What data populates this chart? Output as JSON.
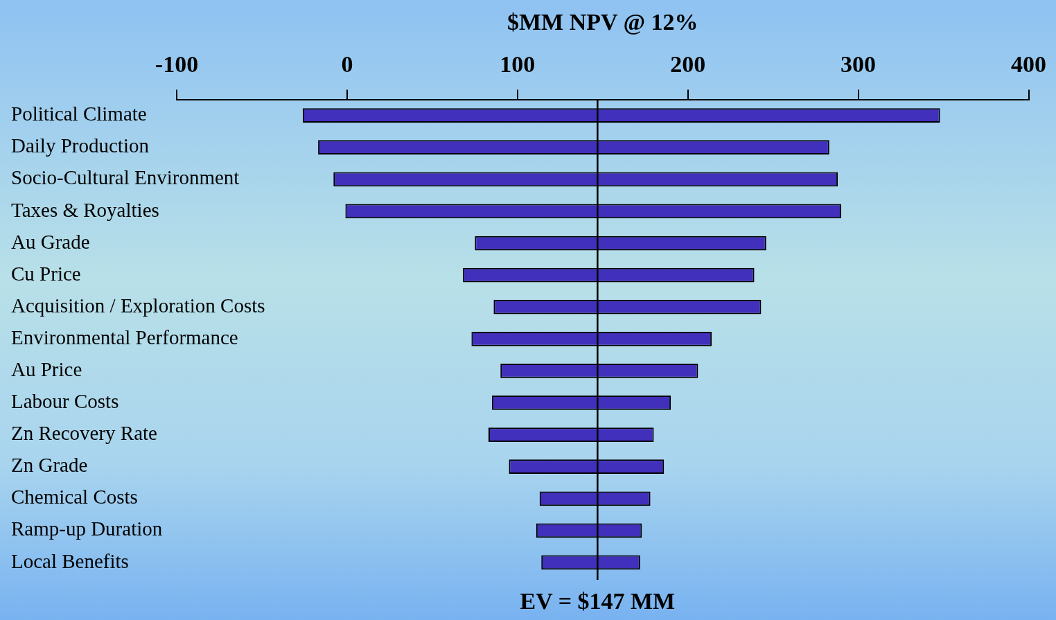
{
  "chart_data": {
    "type": "bar",
    "orientation": "horizontal",
    "xlabel": "$MM NPV @ 12%",
    "categories": [
      "Political Climate",
      "Daily Production",
      "Socio-Cultural Environment",
      "Taxes & Royalties",
      "Au Grade",
      "Cu Price",
      "Acquisition / Exploration Costs",
      "Environmental Performance",
      "Au Price",
      "Labour Costs",
      "Zn Recovery Rate",
      "Zn Grade",
      "Chemical Costs",
      "Ramp-up Duration",
      "Local Benefits"
    ],
    "base": [
      -26,
      -17,
      -8,
      -1,
      75,
      68,
      86,
      73,
      90,
      85,
      83,
      95,
      113,
      111,
      114
    ],
    "values": [
      374,
      300,
      296,
      291,
      171,
      171,
      157,
      141,
      116,
      105,
      97,
      91,
      65,
      62,
      58
    ],
    "color": "#4030bc",
    "xlim": [
      -100,
      400
    ],
    "xticks": [
      -100,
      0,
      100,
      200,
      300,
      400
    ],
    "ref_lines": [
      {
        "axis": "x",
        "value": 147,
        "label": "EV = $147 MM",
        "color": "#000000"
      }
    ]
  }
}
